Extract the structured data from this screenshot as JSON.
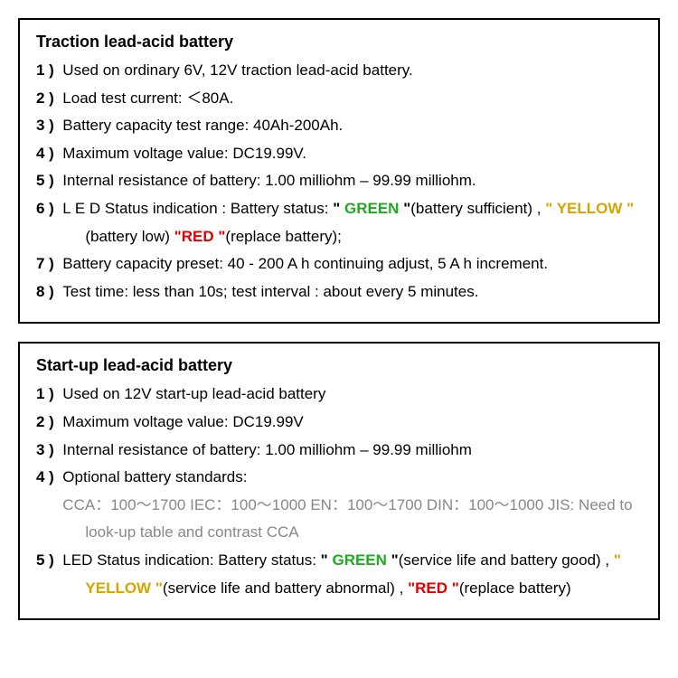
{
  "colors": {
    "green": "#20aa20",
    "yellow": "#d4a500",
    "red": "#e00000",
    "text": "#000000",
    "muted": "#888888",
    "border": "#000000",
    "background": "#ffffff"
  },
  "panel1": {
    "title": "Traction lead-acid battery",
    "i1_n": "1 )",
    "i1_t": "Used on ordinary 6V, 12V traction lead-acid battery.",
    "i2_n": "2 )",
    "i2_t": "Load test current: ＜80A.",
    "i3_n": "3 )",
    "i3_t": "Battery capacity test range: 40Ah-200Ah.",
    "i4_n": "4 )",
    "i4_t": "Maximum voltage value: DC19.99V.",
    "i5_n": "5 )",
    "i5_t": "Internal resistance of battery: 1.00 milliohm – 99.99 milliohm.",
    "i6_n": "6 )",
    "i6_pre": "L E D Status indication : Battery status: ",
    "i6_q1a": "\" ",
    "i6_g": "GREEN",
    "i6_q1b": " \"",
    "i6_mid1": "(battery sufficient) , ",
    "i6_q2a": "\" ",
    "i6_y": "YELLOW",
    "i6_q2b": " \"",
    "i6_mid2": "(battery low)  ",
    "i6_q3a": "\"",
    "i6_r": "RED",
    "i6_q3b": " \"",
    "i6_end": "(replace battery);",
    "i7_n": "7 )",
    "i7_t": "Battery capacity preset: 40 - 200 A h continuing adjust, 5 A h increment.",
    "i8_n": "8 )",
    "i8_t": "Test time: less than 10s; test interval : about every 5 minutes."
  },
  "panel2": {
    "title": "Start-up lead-acid battery",
    "i1_n": "1 )",
    "i1_t": "Used on 12V start-up lead-acid battery",
    "i2_n": "2 )",
    "i2_t": "Maximum voltage value: DC19.99V",
    "i3_n": "3 )",
    "i3_t": "Internal resistance of battery: 1.00 milliohm – 99.99 milliohm",
    "i4_n": "4 )",
    "i4_t": "Optional battery standards:",
    "i4_std": "CCA：100～1700    IEC：100～1000    EN：100～1700    DIN：100～1000      JIS: Need to look-up table and contrast CCA",
    "i5_n": "5 )",
    "i5_pre": "LED Status indication: Battery status: ",
    "i5_q1a": "\" ",
    "i5_g": "GREEN",
    "i5_q1b": " \"",
    "i5_mid1": "(service life and battery good) , ",
    "i5_q2a": "\" ",
    "i5_y": "YELLOW",
    "i5_q2b": " \"",
    "i5_mid2": "(service life and battery abnormal) , ",
    "i5_q3a": "\"",
    "i5_r": "RED",
    "i5_q3b": " \"",
    "i5_end": "(replace battery)"
  }
}
